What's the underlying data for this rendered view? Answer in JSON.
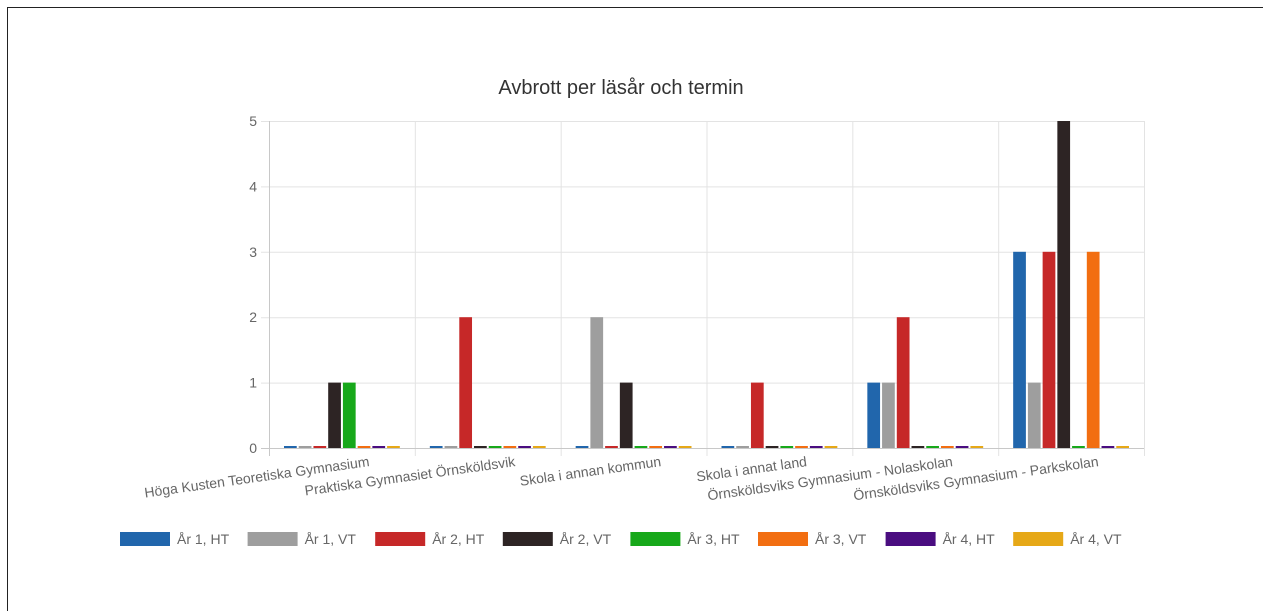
{
  "chart_data": {
    "type": "bar",
    "title": "Avbrott per läsår och termin",
    "xlabel": "",
    "ylabel": "",
    "ylim": [
      0,
      5
    ],
    "yticks": [
      0,
      1,
      2,
      3,
      4,
      5
    ],
    "grid": true,
    "legend_position": "bottom",
    "categories": [
      "Höga Kusten Teoretiska Gymnasium",
      "Praktiska Gymnasiet Örnsköldsvik",
      "Skola i annan kommun",
      "Skola i annat land",
      "Örnsköldsviks Gymnasium - Nolaskolan",
      "Örnsköldsviks Gymnasium - Parkskolan"
    ],
    "series": [
      {
        "name": "År 1, HT",
        "color": "#2166ac",
        "values": [
          0,
          0,
          0,
          0,
          1,
          3
        ]
      },
      {
        "name": "År 1, VT",
        "color": "#9e9e9e",
        "values": [
          0,
          0,
          2,
          0,
          1,
          1
        ]
      },
      {
        "name": "År 2, HT",
        "color": "#c62828",
        "values": [
          0,
          2,
          0,
          1,
          2,
          3
        ]
      },
      {
        "name": "År 2, VT",
        "color": "#2d2424",
        "values": [
          1,
          0,
          1,
          0,
          0,
          5
        ]
      },
      {
        "name": "År 3, HT",
        "color": "#17a81a",
        "values": [
          1,
          0,
          0,
          0,
          0,
          0
        ]
      },
      {
        "name": "År 3, VT",
        "color": "#f26e11",
        "values": [
          0,
          0,
          0,
          0,
          0,
          3
        ]
      },
      {
        "name": "År 4, HT",
        "color": "#4a0d80",
        "values": [
          0,
          0,
          0,
          0,
          0,
          0
        ]
      },
      {
        "name": "År 4, VT",
        "color": "#e6a817",
        "values": [
          0,
          0,
          0,
          0,
          0,
          0
        ]
      }
    ]
  }
}
